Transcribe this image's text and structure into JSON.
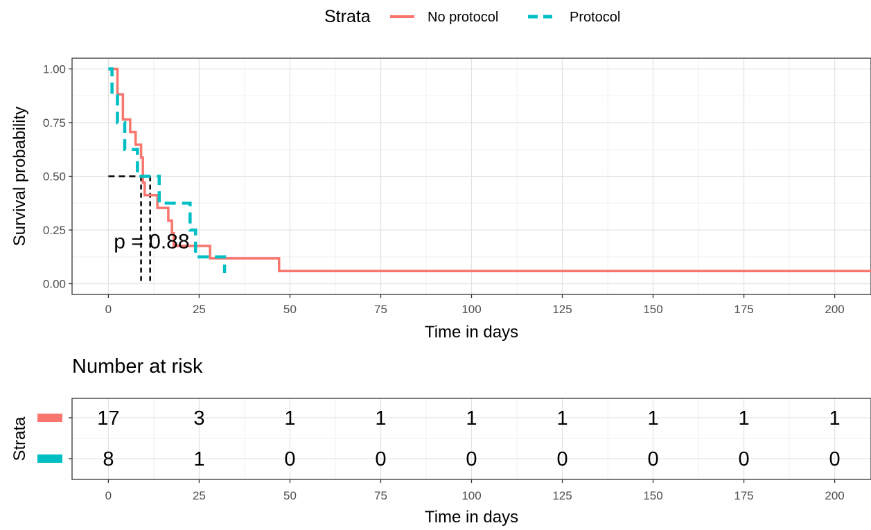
{
  "legend": {
    "title": "Strata",
    "entries": [
      {
        "label": "No protocol",
        "color": "#F8766D",
        "style": "solid"
      },
      {
        "label": "Protocol",
        "color": "#00BFC4",
        "style": "dashed"
      }
    ]
  },
  "chart_data": [
    {
      "type": "line",
      "subtype": "kaplan-meier step",
      "xlabel": "Time in days",
      "ylabel": "Survival probability",
      "xlim": [
        -10,
        210
      ],
      "ylim": [
        -0.05,
        1.05
      ],
      "xticks": [
        0,
        25,
        50,
        75,
        100,
        125,
        150,
        175,
        200
      ],
      "yticks": [
        0.0,
        0.25,
        0.5,
        0.75,
        1.0
      ],
      "ytick_labels": [
        "0.00",
        "0.25",
        "0.50",
        "0.75",
        "1.00"
      ],
      "grid": true,
      "legend_position": "top",
      "annotation": "p = 0.88",
      "series": [
        {
          "name": "No protocol",
          "color": "#F8766D",
          "style": "solid",
          "steps": [
            [
              0,
              1.0
            ],
            [
              2.5,
              0.882
            ],
            [
              4,
              0.765
            ],
            [
              6,
              0.706
            ],
            [
              7.5,
              0.647
            ],
            [
              9,
              0.588
            ],
            [
              9.5,
              0.471
            ],
            [
              10,
              0.412
            ],
            [
              12,
              0.412
            ],
            [
              13.5,
              0.353
            ],
            [
              16.5,
              0.294
            ],
            [
              17.5,
              0.235
            ],
            [
              18,
              0.176
            ],
            [
              25,
              0.176
            ],
            [
              28,
              0.118
            ],
            [
              47,
              0.059
            ],
            [
              210,
              0.059
            ]
          ]
        },
        {
          "name": "Protocol",
          "color": "#00BFC4",
          "style": "dashed",
          "steps": [
            [
              0,
              1.0
            ],
            [
              1,
              0.875
            ],
            [
              2.5,
              0.75
            ],
            [
              4.5,
              0.625
            ],
            [
              8,
              0.5
            ],
            [
              14,
              0.375
            ],
            [
              22.5,
              0.25
            ],
            [
              24,
              0.125
            ],
            [
              28,
              0.125
            ],
            [
              32,
              0.05
            ]
          ]
        }
      ],
      "median_lines": {
        "y": 0.5,
        "x": [
          9,
          11.5
        ]
      }
    },
    {
      "type": "table",
      "title": "Number at risk",
      "xlabel": "Time in days",
      "ylabel": "Strata",
      "xlim": [
        -10,
        210
      ],
      "times": [
        0,
        25,
        50,
        75,
        100,
        125,
        150,
        175,
        200
      ],
      "rows": [
        {
          "name": "No protocol",
          "color": "#F8766D",
          "values": [
            17,
            3,
            1,
            1,
            1,
            1,
            1,
            1,
            1
          ]
        },
        {
          "name": "Protocol",
          "color": "#00BFC4",
          "values": [
            8,
            1,
            0,
            0,
            0,
            0,
            0,
            0,
            0
          ]
        }
      ]
    }
  ]
}
